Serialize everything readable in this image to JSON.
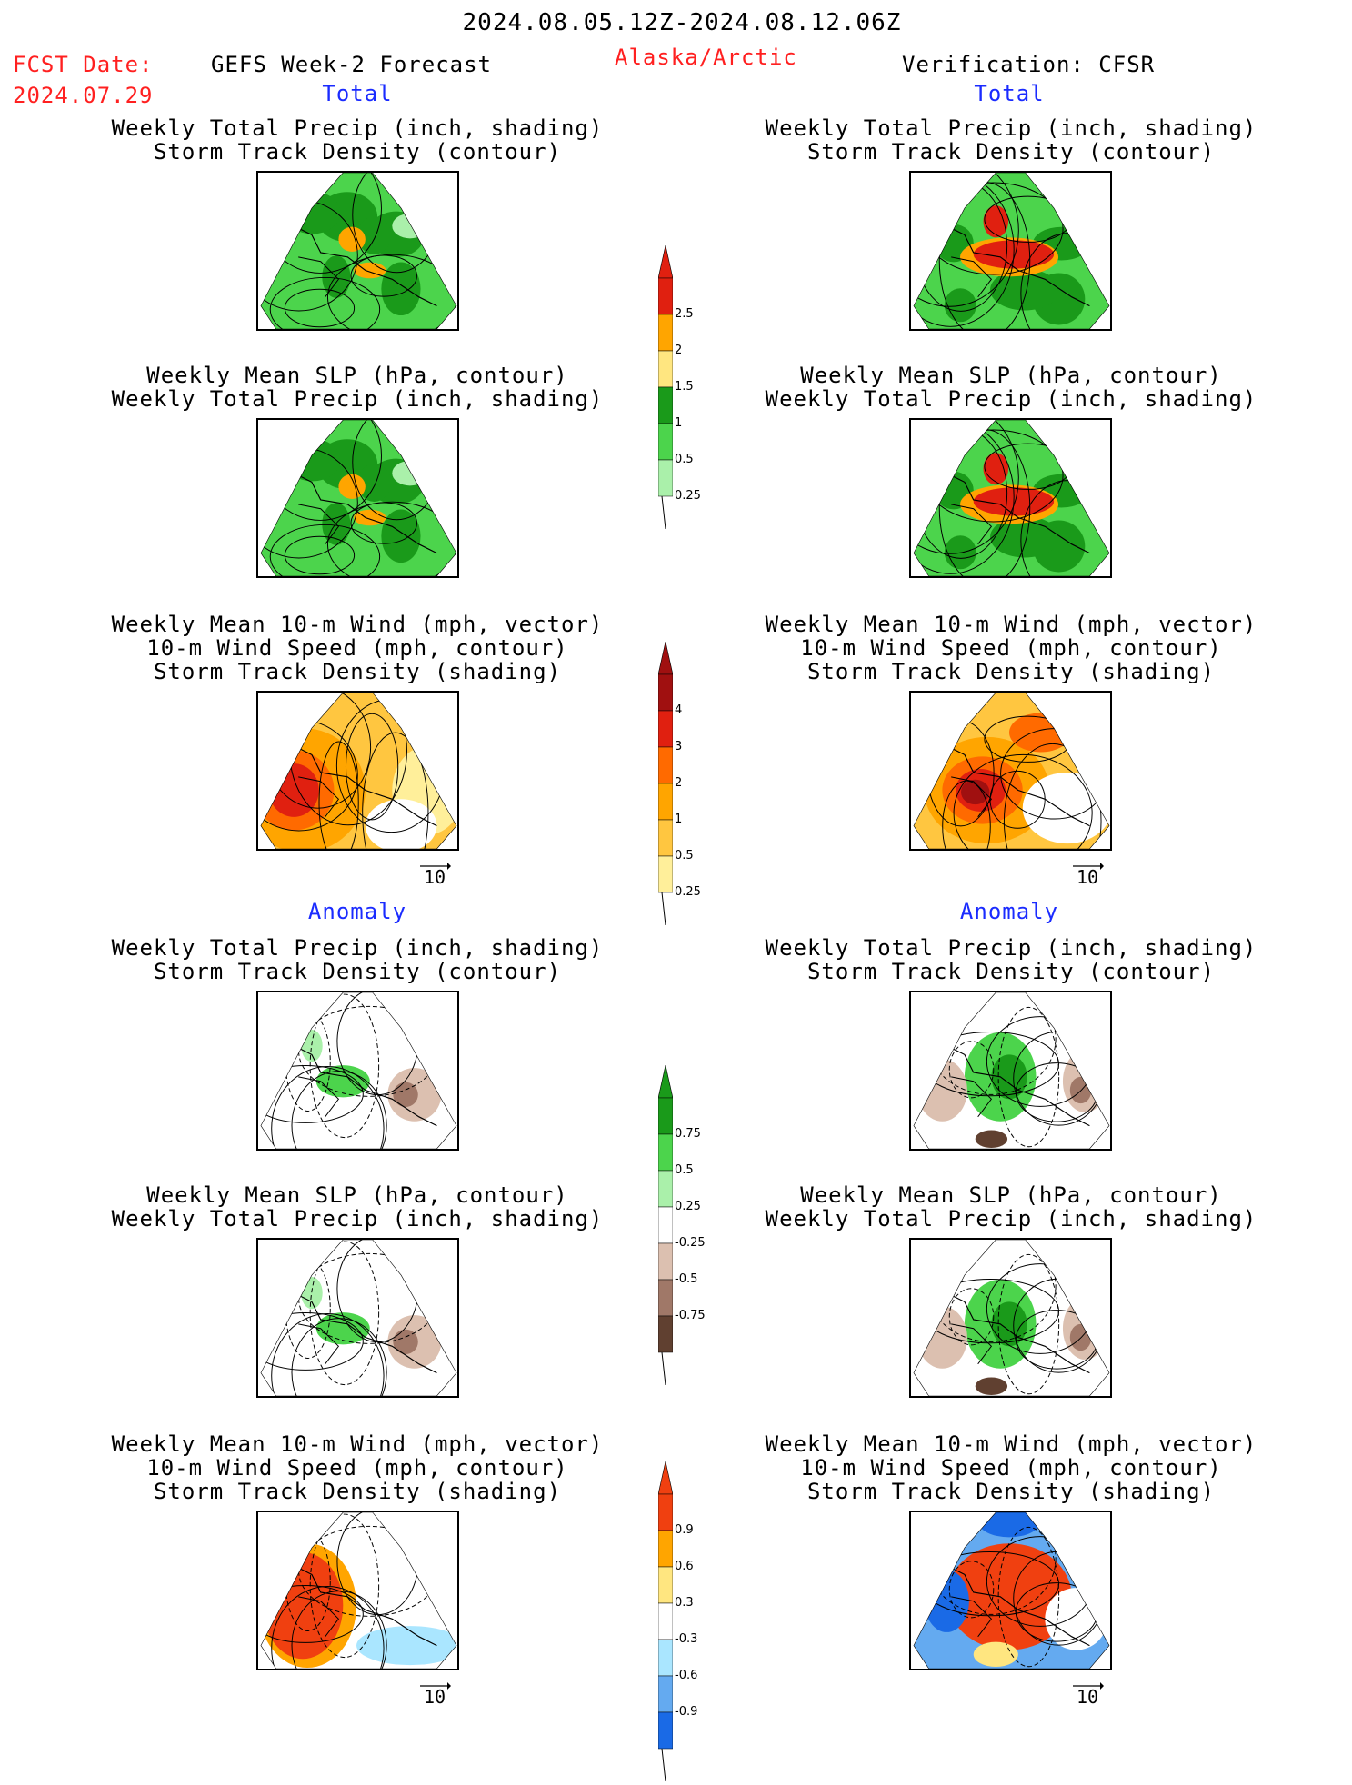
{
  "header": {
    "date_range": "2024.08.05.12Z-2024.08.12.06Z",
    "fcst_label": "FCST Date:",
    "fcst_date": "2024.07.29",
    "model": "GEFS Week-2 Forecast",
    "region": "Alaska/Arctic",
    "verification": "Verification: CFSR"
  },
  "sections": {
    "total": "Total",
    "anomaly": "Anomaly"
  },
  "titles": {
    "precip_track": [
      "Weekly Total Precip (inch, shading)",
      "Storm Track Density (contour)"
    ],
    "slp_precip": [
      "Weekly Mean SLP (hPa, contour)",
      "Weekly Total Precip (inch, shading)"
    ],
    "wind_track": [
      "Weekly Mean 10-m Wind (mph, vector)",
      "10-m Wind Speed (mph, contour)",
      "Storm Track Density (shading)"
    ]
  },
  "vector_ref": "10",
  "colorbars": {
    "precip_total": {
      "labels": [
        "2.5",
        "2",
        "1.5",
        "1",
        "0.5",
        "0.25"
      ],
      "colors": [
        "#e02010",
        "#ffa500",
        "#ffe680",
        "#1a9a1a",
        "#4cd44c",
        "#aaf0aa"
      ]
    },
    "track_total": {
      "labels": [
        "4",
        "3",
        "2",
        "1",
        "0.5",
        "0.25"
      ],
      "colors": [
        "#a01010",
        "#e02010",
        "#ff6a00",
        "#ffa500",
        "#ffc640",
        "#ffef9a"
      ]
    },
    "precip_anom": {
      "labels": [
        "0.75",
        "0.5",
        "0.25",
        "-0.25",
        "-0.5",
        "-0.75"
      ],
      "colors": [
        "#1a9a1a",
        "#4cd44c",
        "#aaf0aa",
        "#ffffff",
        "#dcc0b0",
        "#a07868",
        "#604030"
      ]
    },
    "track_anom": {
      "labels": [
        "0.9",
        "0.6",
        "0.3",
        "-0.3",
        "-0.6",
        "-0.9"
      ],
      "colors": [
        "#f04010",
        "#ffa500",
        "#ffe680",
        "#ffffff",
        "#aae6ff",
        "#64aaf0",
        "#1a6ae6"
      ]
    }
  }
}
